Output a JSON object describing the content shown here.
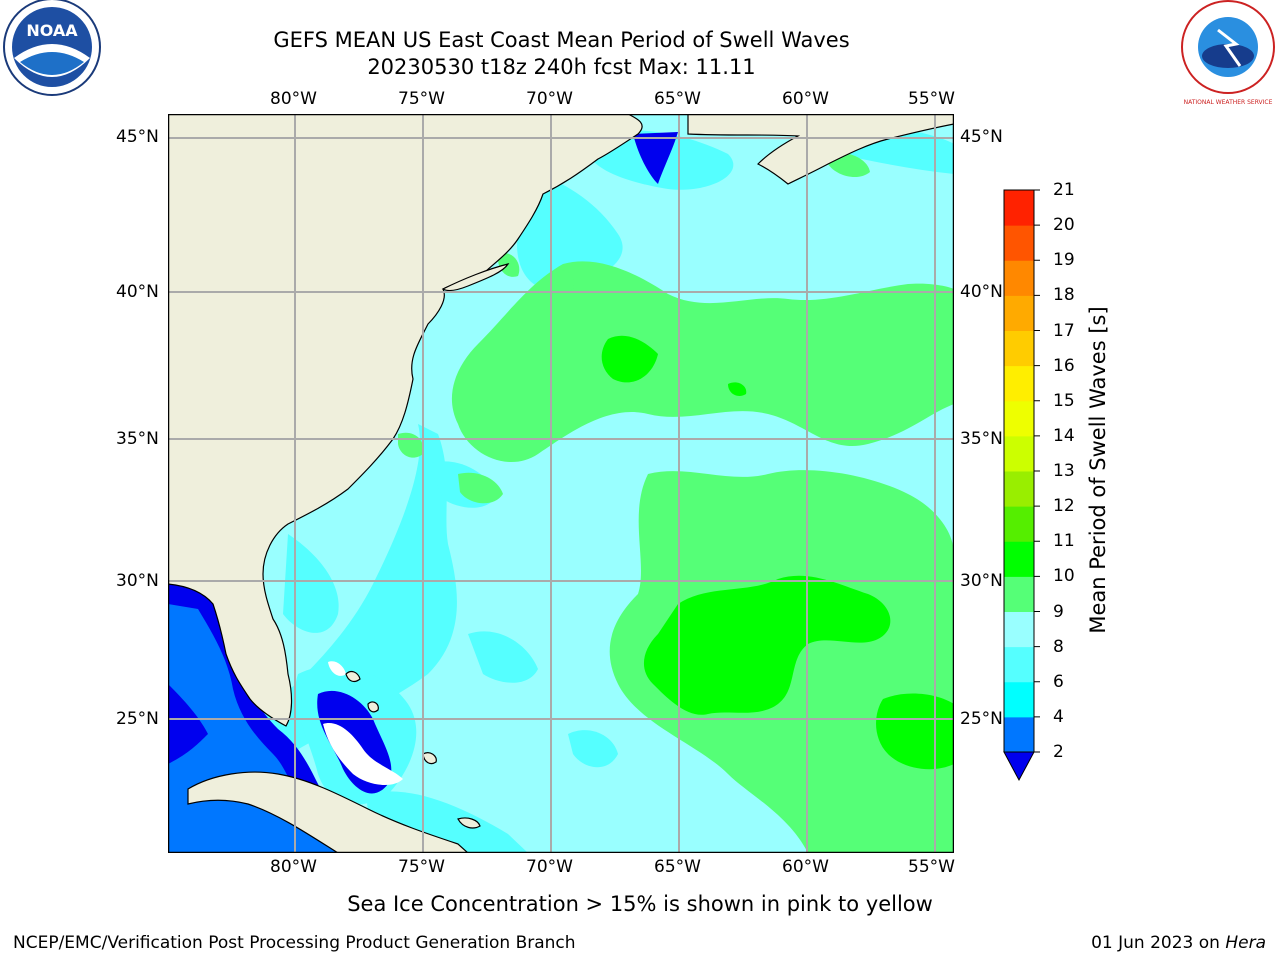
{
  "header": {
    "title": "GEFS MEAN US East Coast Mean Period of Swell Waves",
    "subtitle": "20230530 t18z 240h fcst   Max: 11.11"
  },
  "logos": {
    "left_text": "NOAA",
    "right_text": "NATIONAL WEATHER SERVICE"
  },
  "map": {
    "lon_labels": [
      "80°W",
      "75°W",
      "70°W",
      "65°W",
      "60°W",
      "55°W"
    ],
    "lat_labels": [
      "45°N",
      "40°N",
      "35°N",
      "30°N",
      "25°N"
    ],
    "lon_range": [
      -85,
      -54.2
    ],
    "lat_range": [
      20.5,
      45.8
    ]
  },
  "colorbar": {
    "label": "Mean Period of Swell Waves [s]",
    "ticks": [
      "2",
      "4",
      "6",
      "8",
      "9",
      "10",
      "11",
      "12",
      "13",
      "14",
      "15",
      "16",
      "17",
      "18",
      "19",
      "20",
      "21"
    ],
    "colors": [
      "#0077ff",
      "#00ccff",
      "#00ffff",
      "#55ffff",
      "#99ffff",
      "#55ff77",
      "#00ff00",
      "#55ee00",
      "#99ee00",
      "#ccff00",
      "#eeff00",
      "#ffee00",
      "#ffcc00",
      "#ffaa00",
      "#ff8800",
      "#ff5500",
      "#ff2200",
      "#ff0000"
    ],
    "under_color": "#0000ee"
  },
  "footer": {
    "note": "Sea Ice Concentration > 15% is shown in pink to yellow",
    "credit": "NCEP/EMC/Verification Post Processing Product Generation Branch",
    "date": "01 Jun 2023 on ",
    "machine": "Hera"
  }
}
